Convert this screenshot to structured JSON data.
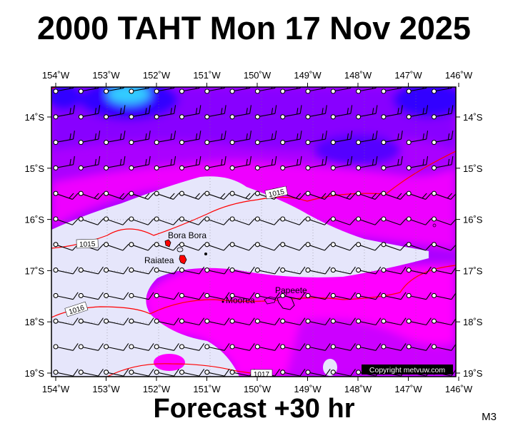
{
  "title": "2000 TAHT Mon 17 Nov 2025",
  "forecast": "Forecast +30 hr",
  "model_code": "M3",
  "copyright": "Copyright metvuw.com",
  "map": {
    "lon_labels": [
      "154˚W",
      "153˚W",
      "152˚W",
      "151˚W",
      "150˚W",
      "149˚W",
      "148˚W",
      "147˚W",
      "146˚W"
    ],
    "lat_labels": [
      "14˚S",
      "15˚S",
      "16˚S",
      "17˚S",
      "18˚S",
      "19˚S"
    ],
    "place_labels": [
      "Bora Bora",
      "Raiatea",
      "Moorea",
      "Papeete"
    ],
    "isobar_labels": [
      "1015",
      "1016",
      "1015",
      "1017"
    ],
    "colors": {
      "pale": "#e6e6fb",
      "magenta": "#ff00ff",
      "purple_mid": "#cc00ff",
      "violet": "#9900ff",
      "blue_violet": "#6600ff",
      "blue": "#3300ff",
      "cyan": "#33ccff",
      "isobar": "#ff0000",
      "land": "#ff0000"
    }
  }
}
